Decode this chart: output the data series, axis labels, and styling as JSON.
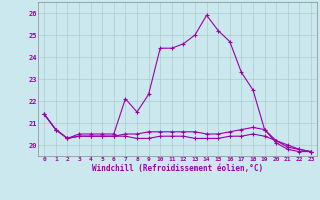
{
  "title": "",
  "xlabel": "Windchill (Refroidissement éolien,°C)",
  "ylabel": "",
  "background_color": "#cce8ef",
  "line_color": "#9900aa",
  "grid_color": "#aacccc",
  "xlim": [
    -0.5,
    23.5
  ],
  "ylim": [
    19.5,
    26.5
  ],
  "yticks": [
    20,
    21,
    22,
    23,
    24,
    25,
    26
  ],
  "xticks": [
    0,
    1,
    2,
    3,
    4,
    5,
    6,
    7,
    8,
    9,
    10,
    11,
    12,
    13,
    14,
    15,
    16,
    17,
    18,
    19,
    20,
    21,
    22,
    23
  ],
  "series1_x": [
    0,
    1,
    2,
    3,
    4,
    5,
    6,
    7,
    8,
    9,
    10,
    11,
    12,
    13,
    14,
    15,
    16,
    17,
    18,
    19,
    20,
    21,
    22,
    23
  ],
  "series1_y": [
    21.4,
    20.7,
    20.3,
    20.5,
    20.5,
    20.5,
    20.5,
    22.1,
    21.5,
    22.3,
    24.4,
    24.4,
    24.6,
    25.0,
    25.9,
    25.2,
    24.7,
    23.3,
    22.5,
    20.7,
    20.1,
    19.8,
    19.7,
    19.7
  ],
  "series2_x": [
    0,
    1,
    2,
    3,
    4,
    5,
    6,
    7,
    8,
    9,
    10,
    11,
    12,
    13,
    14,
    15,
    16,
    17,
    18,
    19,
    20,
    21,
    22,
    23
  ],
  "series2_y": [
    21.4,
    20.7,
    20.3,
    20.4,
    20.4,
    20.4,
    20.4,
    20.4,
    20.3,
    20.3,
    20.4,
    20.4,
    20.4,
    20.3,
    20.3,
    20.3,
    20.4,
    20.4,
    20.5,
    20.4,
    20.2,
    20.0,
    19.8,
    19.7
  ],
  "series3_x": [
    0,
    1,
    2,
    3,
    4,
    5,
    6,
    7,
    8,
    9,
    10,
    11,
    12,
    13,
    14,
    15,
    16,
    17,
    18,
    19,
    20,
    21,
    22,
    23
  ],
  "series3_y": [
    21.4,
    20.7,
    20.3,
    20.4,
    20.4,
    20.4,
    20.4,
    20.5,
    20.5,
    20.6,
    20.6,
    20.6,
    20.6,
    20.6,
    20.5,
    20.5,
    20.6,
    20.7,
    20.8,
    20.7,
    20.2,
    19.9,
    19.8,
    19.7
  ]
}
